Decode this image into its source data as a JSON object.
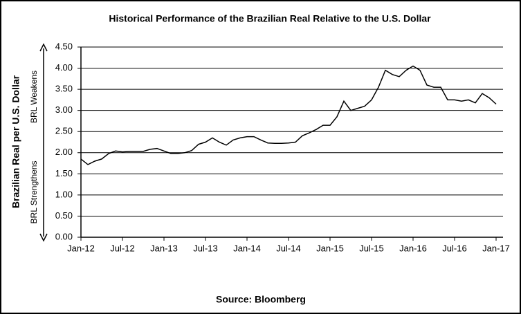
{
  "chart_data": {
    "type": "line",
    "title": "Historical Performance of the Brazilian Real Relative to the U.S. Dollar",
    "y_label": "Brazilian Real per U.S. Dollar",
    "annotations": [
      "BRL Weakens",
      "BRL Strengthens"
    ],
    "source": "Source: Bloomberg",
    "x": [
      "2012-01",
      "2012-02",
      "2012-03",
      "2012-04",
      "2012-05",
      "2012-06",
      "2012-07",
      "2012-08",
      "2012-09",
      "2012-10",
      "2012-11",
      "2012-12",
      "2013-01",
      "2013-02",
      "2013-03",
      "2013-04",
      "2013-05",
      "2013-06",
      "2013-07",
      "2013-08",
      "2013-09",
      "2013-10",
      "2013-11",
      "2013-12",
      "2014-01",
      "2014-02",
      "2014-03",
      "2014-04",
      "2014-05",
      "2014-06",
      "2014-07",
      "2014-08",
      "2014-09",
      "2014-10",
      "2014-11",
      "2014-12",
      "2015-01",
      "2015-02",
      "2015-03",
      "2015-04",
      "2015-05",
      "2015-06",
      "2015-07",
      "2015-08",
      "2015-09",
      "2015-10",
      "2015-11",
      "2015-12",
      "2016-01",
      "2016-02",
      "2016-03",
      "2016-04",
      "2016-05",
      "2016-06",
      "2016-07",
      "2016-08",
      "2016-09",
      "2016-10",
      "2016-11",
      "2016-12",
      "2017-01"
    ],
    "series": [
      {
        "name": "BRL per USD",
        "color": "#000000",
        "values": [
          1.85,
          1.72,
          1.8,
          1.85,
          1.98,
          2.04,
          2.02,
          2.03,
          2.03,
          2.03,
          2.08,
          2.1,
          2.04,
          1.98,
          1.98,
          2.0,
          2.05,
          2.2,
          2.25,
          2.35,
          2.25,
          2.18,
          2.3,
          2.35,
          2.38,
          2.38,
          2.3,
          2.23,
          2.22,
          2.22,
          2.23,
          2.25,
          2.4,
          2.47,
          2.55,
          2.65,
          2.65,
          2.85,
          3.22,
          3.0,
          3.05,
          3.1,
          3.25,
          3.55,
          3.95,
          3.85,
          3.8,
          3.95,
          4.05,
          3.95,
          3.6,
          3.55,
          3.55,
          3.25,
          3.25,
          3.22,
          3.25,
          3.18,
          3.4,
          3.3,
          3.15
        ]
      }
    ],
    "xlim": [
      "2012-01",
      "2017-02"
    ],
    "xticks": [
      {
        "value": "2012-01",
        "label": "Jan-12"
      },
      {
        "value": "2012-07",
        "label": "Jul-12"
      },
      {
        "value": "2013-01",
        "label": "Jan-13"
      },
      {
        "value": "2013-07",
        "label": "Jul-13"
      },
      {
        "value": "2014-01",
        "label": "Jan-14"
      },
      {
        "value": "2014-07",
        "label": "Jul-14"
      },
      {
        "value": "2015-01",
        "label": "Jan-15"
      },
      {
        "value": "2015-07",
        "label": "Jul-15"
      },
      {
        "value": "2016-01",
        "label": "Jan-16"
      },
      {
        "value": "2016-07",
        "label": "Jul-16"
      },
      {
        "value": "2017-01",
        "label": "Jan-17"
      }
    ],
    "ylim": [
      0,
      4.5
    ],
    "yticks": [
      {
        "value": 0,
        "label": "0.00"
      },
      {
        "value": 0.5,
        "label": "0.50"
      },
      {
        "value": 1,
        "label": "1.00"
      },
      {
        "value": 1.5,
        "label": "1.50"
      },
      {
        "value": 2,
        "label": "2.00"
      },
      {
        "value": 2.5,
        "label": "2.50"
      },
      {
        "value": 3,
        "label": "3.00"
      },
      {
        "value": 3.5,
        "label": "3.50"
      },
      {
        "value": 4,
        "label": "4.00"
      },
      {
        "value": 4.5,
        "label": "4.50"
      }
    ],
    "grid": true
  }
}
